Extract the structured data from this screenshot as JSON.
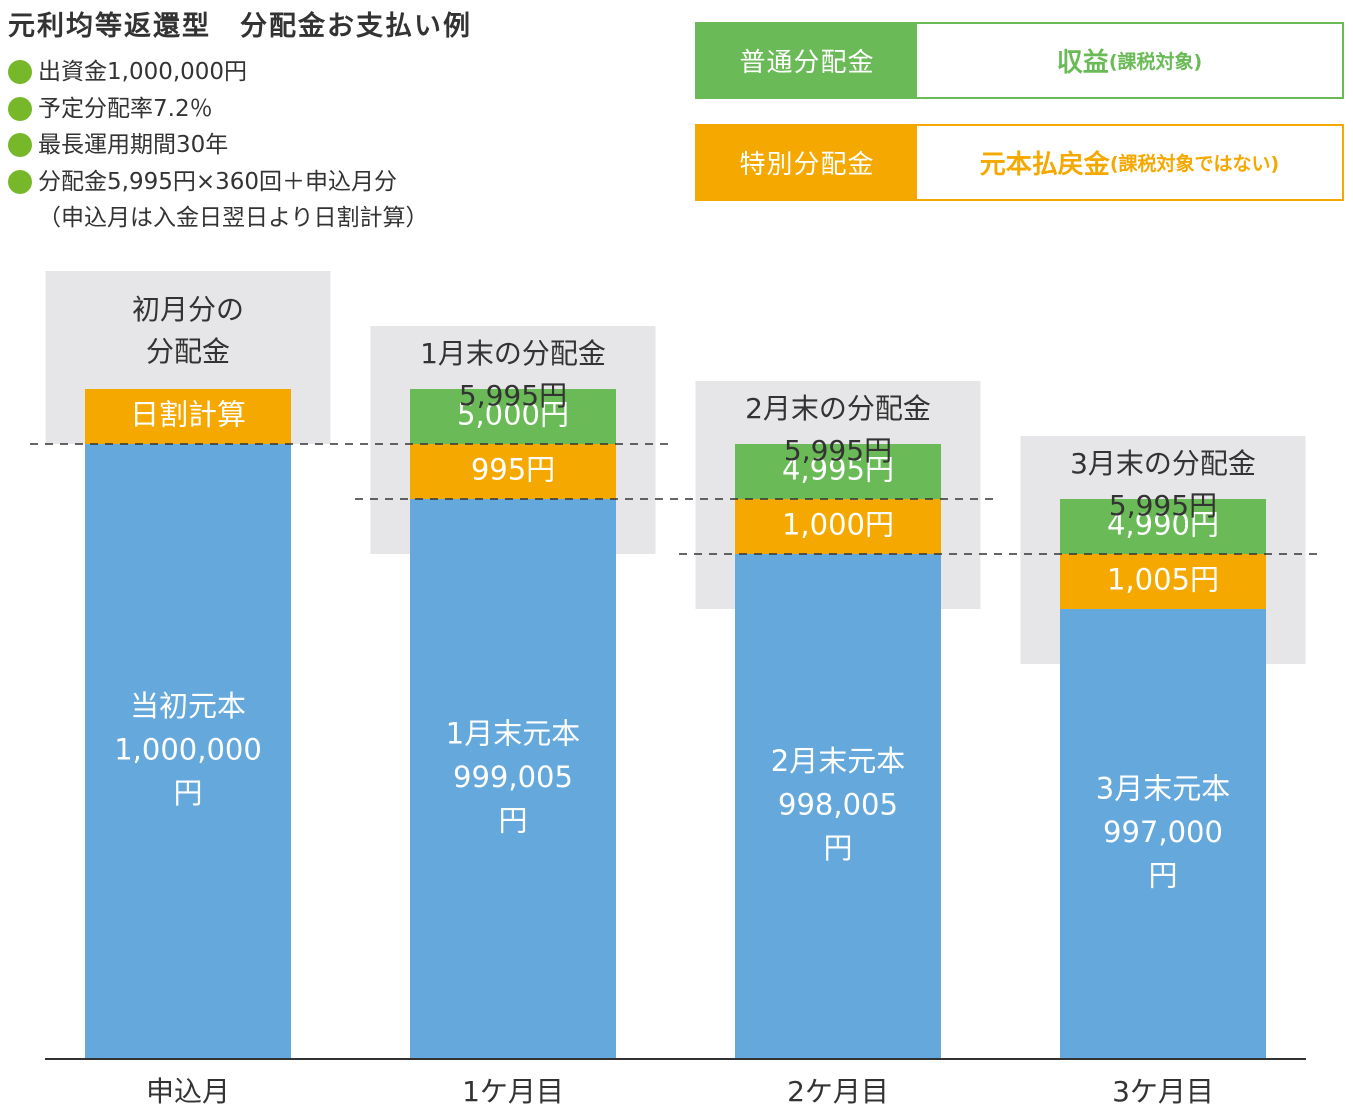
{
  "header": {
    "title": "元利均等返還型　分配金お支払い例",
    "bullets": [
      "出資金1,000,000円",
      "予定分配率7.2％",
      "最長運用期間30年",
      "分配金5,995円×360回＋申込月分"
    ],
    "note": "（申込月は入金日翌日より日割計算）"
  },
  "legend": {
    "ordinary": {
      "label": "普通分配金",
      "main": "収益",
      "sub": "(課税対象)",
      "color": "#6abb57"
    },
    "special": {
      "label": "特別分配金",
      "main": "元本払戻金",
      "sub": "(課税対象ではない)",
      "color": "#f5a800"
    }
  },
  "colors": {
    "principal": "#65a9dc",
    "callout": "#e6e6e8",
    "axis": "#333333"
  },
  "chart_data": {
    "type": "bar",
    "categories": [
      "申込月",
      "1ケ月目",
      "2ケ月目",
      "3ケ月目"
    ],
    "ylim": [
      0,
      1000000
    ],
    "series": [
      {
        "name": "元本",
        "values": [
          1000000,
          999005,
          998005,
          997000
        ],
        "labels": [
          "当初元本\n1,000,000\n円",
          "1月末元本\n999,005\n円",
          "2月末元本\n998,005\n円",
          "3月末元本\n997,000\n円"
        ]
      },
      {
        "name": "特別分配金",
        "values": [
          null,
          995,
          1000,
          1005
        ],
        "labels": [
          "日割計算",
          "995円",
          "1,000円",
          "1,005円"
        ]
      },
      {
        "name": "普通分配金",
        "values": [
          null,
          5000,
          4995,
          4990
        ],
        "labels": [
          "",
          "5,000円",
          "4,995円",
          "4,990円"
        ]
      }
    ],
    "callouts": [
      "初月分の\n分配金",
      "1月末の分配金\n5,995円",
      "2月末の分配金\n5,995円",
      "3月末の分配金\n5,995円"
    ]
  }
}
